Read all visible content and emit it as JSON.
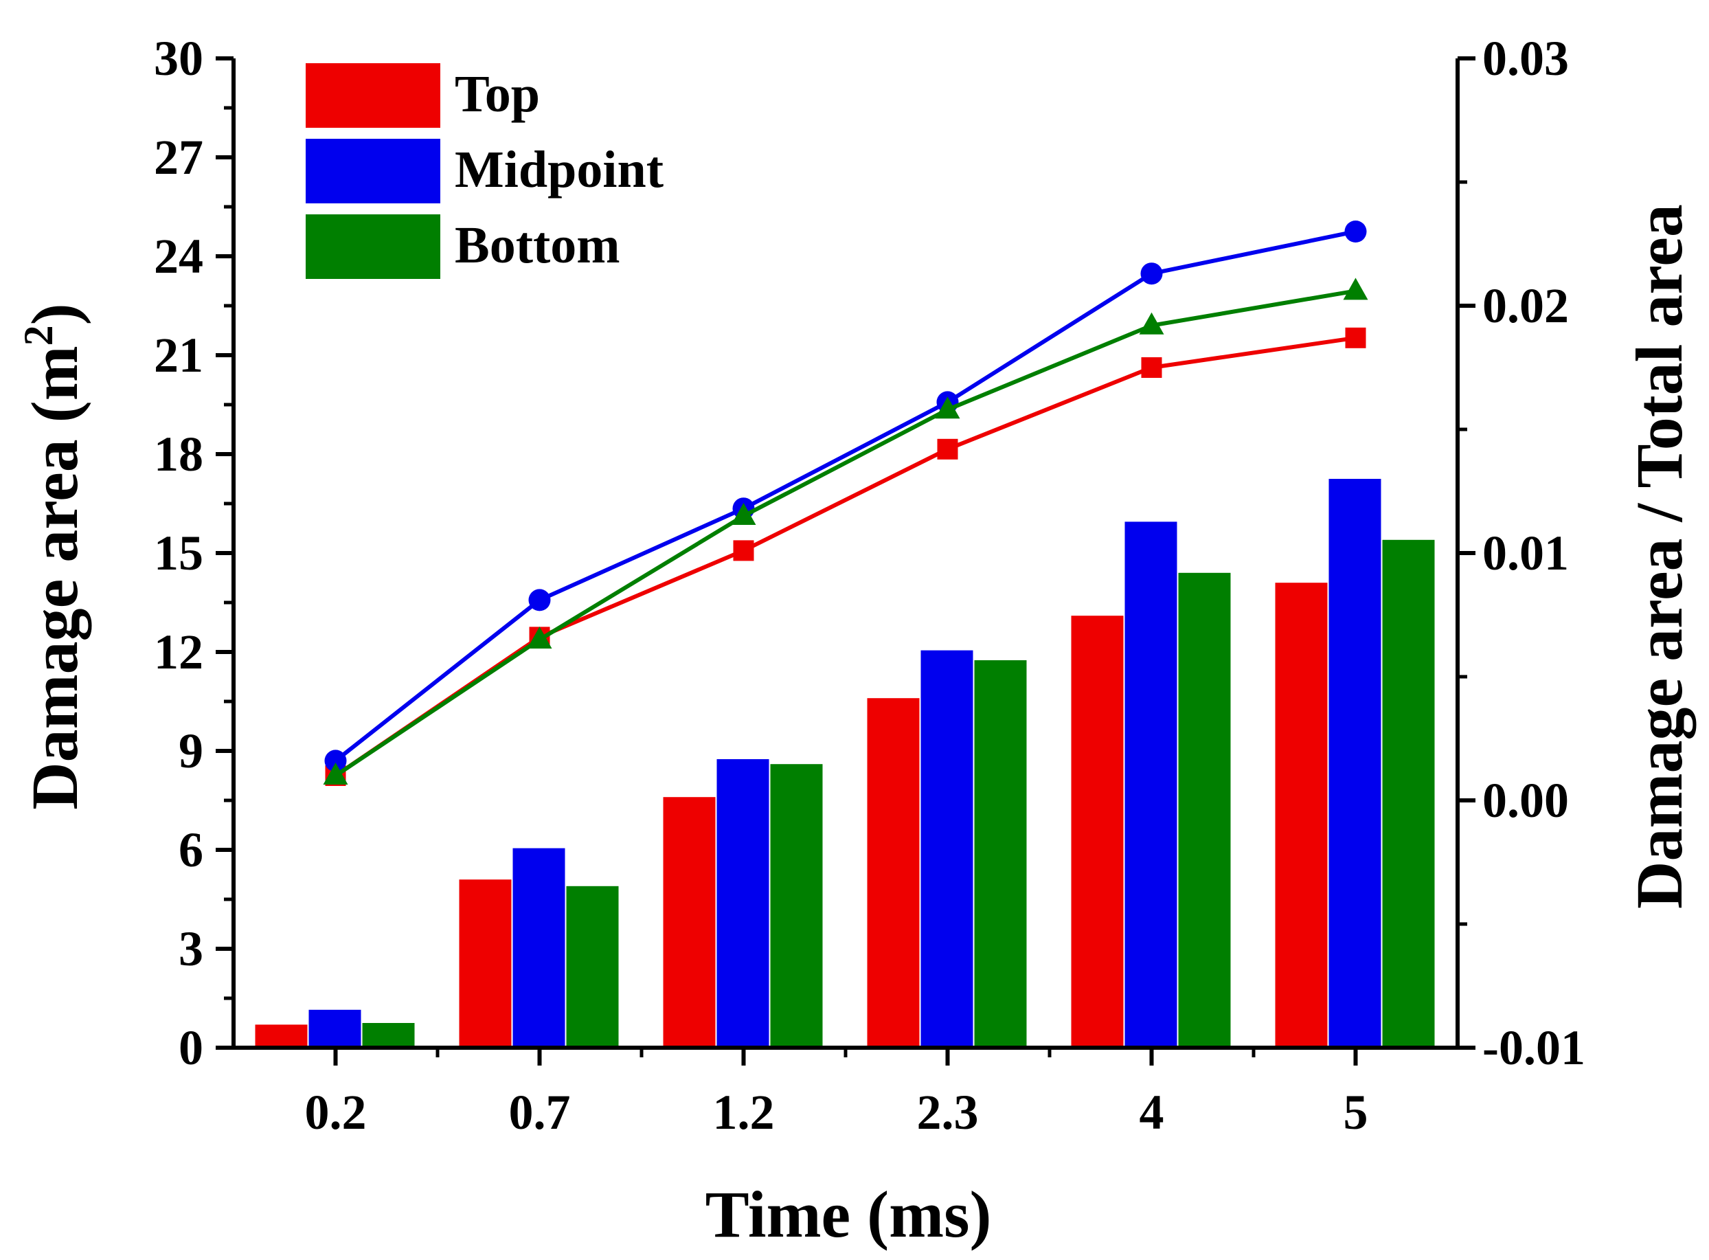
{
  "chart_data": {
    "type": "bar",
    "categories": [
      "0.2",
      "0.7",
      "1.2",
      "2.3",
      "4",
      "5"
    ],
    "xlabel": "Time (ms)",
    "ylabel": "Damage area (m²)",
    "ylabel_main": "Damage area (m",
    "ylabel_sup": "2",
    "ylabel_end": ")",
    "y2label": "Damage area / Total area",
    "ylim": [
      0,
      30
    ],
    "y2lim": [
      -0.01,
      0.03
    ],
    "yticks": [
      "0",
      "3",
      "6",
      "9",
      "12",
      "15",
      "18",
      "21",
      "24",
      "27",
      "30"
    ],
    "y2ticks": [
      "-0.01",
      "0.00",
      "0.01",
      "0.02",
      "0.03"
    ],
    "legend_position": "top-left",
    "series": [
      {
        "name": "Top",
        "color": "#ee0000",
        "marker": "square",
        "bar_values": [
          0.7,
          5.1,
          7.6,
          10.6,
          13.1,
          14.1
        ],
        "line_values": [
          0.001,
          0.0066,
          0.0101,
          0.0142,
          0.0175,
          0.0187
        ]
      },
      {
        "name": "Midpoint",
        "color": "#0000ee",
        "marker": "circle",
        "bar_values": [
          1.15,
          6.05,
          8.75,
          12.05,
          15.95,
          17.25
        ],
        "line_values": [
          0.0016,
          0.0081,
          0.0118,
          0.0161,
          0.0213,
          0.023
        ]
      },
      {
        "name": "Bottom",
        "color": "#007f00",
        "marker": "triangle",
        "bar_values": [
          0.75,
          4.9,
          8.6,
          11.75,
          14.4,
          15.4
        ],
        "line_values": [
          0.001,
          0.0065,
          0.0115,
          0.0158,
          0.0192,
          0.0206
        ]
      }
    ]
  }
}
